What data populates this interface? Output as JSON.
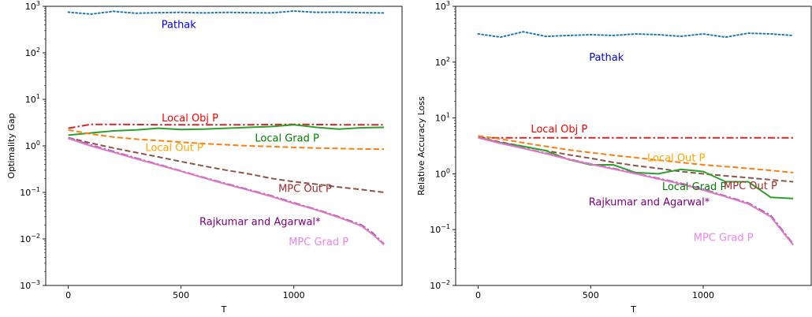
{
  "chart_data": [
    {
      "type": "line",
      "title": "",
      "xlabel": "T",
      "ylabel": "Optimality Gap",
      "yscale": "log",
      "xlim": [
        -100,
        1480
      ],
      "ylim": [
        0.001,
        1000
      ],
      "xticks": [
        "0",
        "500",
        "1000"
      ],
      "yticks": [
        "10^-3",
        "10^-2",
        "10^-1",
        "10^0",
        "10^1",
        "10^2",
        "10^3"
      ],
      "legend": "none",
      "grid": false,
      "series": [
        {
          "name": "Pathak",
          "color": "#1f77b4",
          "style": "dotted",
          "x": [
            0,
            100,
            200,
            300,
            400,
            500,
            600,
            700,
            800,
            900,
            1000,
            1100,
            1200,
            1300,
            1400
          ],
          "y": [
            750,
            680,
            780,
            710,
            730,
            740,
            720,
            740,
            730,
            720,
            790,
            740,
            750,
            730,
            720
          ]
        },
        {
          "name": "Local Obj P",
          "color": "#d62728",
          "style": "dashdot",
          "x": [
            0,
            100,
            200,
            400,
            600,
            800,
            1000,
            1200,
            1400
          ],
          "y": [
            2.4,
            2.9,
            2.9,
            2.85,
            2.85,
            2.85,
            2.9,
            2.85,
            2.85
          ]
        },
        {
          "name": "Local Grad P",
          "color": "#2ca02c",
          "style": "solid",
          "x": [
            0,
            100,
            200,
            300,
            400,
            500,
            600,
            700,
            800,
            900,
            1000,
            1100,
            1200,
            1300,
            1400
          ],
          "y": [
            1.7,
            1.9,
            2.1,
            2.2,
            2.4,
            2.25,
            2.3,
            2.4,
            2.5,
            2.6,
            2.85,
            2.5,
            2.3,
            2.45,
            2.5
          ]
        },
        {
          "name": "Local Out P",
          "color": "#ff7f0e",
          "style": "dashed",
          "x": [
            0,
            100,
            200,
            300,
            400,
            500,
            600,
            700,
            800,
            900,
            1000,
            1100,
            1200,
            1300,
            1400
          ],
          "y": [
            2.2,
            1.8,
            1.55,
            1.4,
            1.3,
            1.2,
            1.12,
            1.06,
            1.0,
            0.97,
            0.93,
            0.9,
            0.88,
            0.86,
            0.85
          ]
        },
        {
          "name": "MPC Out P",
          "color": "#8c564b",
          "style": "dashed",
          "x": [
            0,
            100,
            200,
            300,
            400,
            500,
            600,
            700,
            800,
            900,
            1000,
            1100,
            1200,
            1300,
            1400
          ],
          "y": [
            1.5,
            1.15,
            0.9,
            0.72,
            0.58,
            0.46,
            0.37,
            0.3,
            0.25,
            0.2,
            0.17,
            0.15,
            0.13,
            0.115,
            0.1
          ]
        },
        {
          "name": "Rajkumar and Agarwal*",
          "color": "#9467bd",
          "style": "dashdot",
          "x": [
            0,
            100,
            200,
            300,
            400,
            500,
            600,
            700,
            800,
            900,
            1000,
            1100,
            1200,
            1300,
            1350,
            1400
          ],
          "y": [
            1.5,
            1.05,
            0.76,
            0.55,
            0.4,
            0.29,
            0.21,
            0.155,
            0.115,
            0.085,
            0.06,
            0.043,
            0.03,
            0.02,
            0.0135,
            0.0078
          ]
        },
        {
          "name": "MPC Grad P",
          "color": "#e377c2",
          "style": "solid",
          "x": [
            0,
            100,
            200,
            300,
            400,
            500,
            600,
            700,
            800,
            900,
            1000,
            1100,
            1200,
            1300,
            1350,
            1400
          ],
          "y": [
            1.45,
            1.0,
            0.73,
            0.53,
            0.39,
            0.285,
            0.205,
            0.15,
            0.112,
            0.082,
            0.058,
            0.042,
            0.029,
            0.019,
            0.0125,
            0.0075
          ]
        }
      ],
      "annotations": [
        {
          "text": "Pathak",
          "color": "#0000ff",
          "x": 490,
          "y": 400
        },
        {
          "text": "Local Obj P",
          "color": "#ff0000",
          "x": 540,
          "y": 3.95
        },
        {
          "text": "Local Grad P",
          "color": "#008000",
          "x": 970,
          "y": 1.45
        },
        {
          "text": "Local Out P",
          "color": "#ffa500",
          "x": 470,
          "y": 0.9
        },
        {
          "text": "MPC Out P",
          "color": "#a52a2a",
          "x": 1050,
          "y": 0.12
        },
        {
          "text": "Rajkumar and Agarwal*",
          "color": "#800080",
          "x": 850,
          "y": 0.023
        },
        {
          "text": "MPC Grad P",
          "color": "#ee82ee",
          "x": 1110,
          "y": 0.0085
        }
      ]
    },
    {
      "type": "line",
      "title": "",
      "xlabel": "T",
      "ylabel": "Relative Accuracy Loss",
      "yscale": "log",
      "xlim": [
        -100,
        1480
      ],
      "ylim": [
        0.01,
        1000
      ],
      "xticks": [
        "0",
        "500",
        "1000"
      ],
      "yticks": [
        "10^-2",
        "10^-1",
        "10^0",
        "10^1",
        "10^2",
        "10^3"
      ],
      "legend": "none",
      "grid": false,
      "series": [
        {
          "name": "Pathak",
          "color": "#1f77b4",
          "style": "dotted",
          "x": [
            0,
            100,
            200,
            300,
            400,
            500,
            600,
            700,
            800,
            900,
            1000,
            1100,
            1200,
            1300,
            1400
          ],
          "y": [
            320,
            280,
            350,
            290,
            300,
            310,
            300,
            320,
            310,
            290,
            320,
            280,
            330,
            320,
            300
          ]
        },
        {
          "name": "Local Obj P",
          "color": "#d62728",
          "style": "dashdot",
          "x": [
            0,
            200,
            400,
            600,
            800,
            1000,
            1200,
            1400
          ],
          "y": [
            4.4,
            4.4,
            4.4,
            4.4,
            4.4,
            4.4,
            4.4,
            4.4
          ]
        },
        {
          "name": "Local Out P",
          "color": "#ff7f0e",
          "style": "dashed",
          "x": [
            0,
            100,
            200,
            300,
            400,
            500,
            600,
            700,
            800,
            900,
            1000,
            1100,
            1200,
            1300,
            1400
          ],
          "y": [
            4.8,
            4.2,
            3.6,
            3.1,
            2.7,
            2.4,
            2.15,
            1.95,
            1.75,
            1.6,
            1.45,
            1.35,
            1.25,
            1.15,
            1.05
          ]
        },
        {
          "name": "MPC Out P",
          "color": "#8c564b",
          "style": "dashed",
          "x": [
            0,
            100,
            200,
            300,
            400,
            500,
            600,
            700,
            800,
            900,
            1000,
            1100,
            1200,
            1300,
            1400
          ],
          "y": [
            4.5,
            3.7,
            3.1,
            2.6,
            2.2,
            1.9,
            1.6,
            1.4,
            1.25,
            1.1,
            1.0,
            0.92,
            0.85,
            0.78,
            0.72
          ]
        },
        {
          "name": "Local Grad P",
          "color": "#2ca02c",
          "style": "solid",
          "x": [
            0,
            100,
            200,
            300,
            400,
            500,
            600,
            700,
            800,
            900,
            1000,
            1100,
            1200,
            1300,
            1400
          ],
          "y": [
            4.5,
            3.6,
            3.1,
            2.6,
            1.8,
            1.45,
            1.45,
            1.05,
            1.0,
            1.2,
            1.1,
            0.72,
            0.72,
            0.38,
            0.36
          ]
        },
        {
          "name": "Rajkumar and Agarwal*",
          "color": "#9467bd",
          "style": "dashdot",
          "x": [
            0,
            100,
            200,
            300,
            400,
            500,
            600,
            700,
            800,
            900,
            1000,
            1100,
            1200,
            1300,
            1350,
            1400
          ],
          "y": [
            4.5,
            3.6,
            2.9,
            2.35,
            1.85,
            1.5,
            1.25,
            1.02,
            0.83,
            0.68,
            0.53,
            0.4,
            0.3,
            0.18,
            0.1,
            0.055
          ]
        },
        {
          "name": "MPC Grad P",
          "color": "#e377c2",
          "style": "solid",
          "x": [
            0,
            100,
            200,
            300,
            400,
            500,
            600,
            700,
            800,
            900,
            1000,
            1100,
            1200,
            1300,
            1350,
            1400
          ],
          "y": [
            4.4,
            3.5,
            2.85,
            2.3,
            1.82,
            1.48,
            1.22,
            1.0,
            0.81,
            0.66,
            0.51,
            0.39,
            0.29,
            0.17,
            0.095,
            0.053
          ]
        }
      ],
      "annotations": [
        {
          "text": "Pathak",
          "color": "#0000ff",
          "x": 570,
          "y": 120
        },
        {
          "text": "Local Obj P",
          "color": "#ff0000",
          "x": 360,
          "y": 6.3
        },
        {
          "text": "Local Out P",
          "color": "#ffa500",
          "x": 880,
          "y": 1.9
        },
        {
          "text": "Local Grad P",
          "color": "#008000",
          "x": 960,
          "y": 0.58
        },
        {
          "text": "MPC Out P",
          "color": "#a52a2a",
          "x": 1210,
          "y": 0.6
        },
        {
          "text": "Rajkumar and Agarwal*",
          "color": "#800080",
          "x": 760,
          "y": 0.31
        },
        {
          "text": "MPC Grad P",
          "color": "#ee82ee",
          "x": 1090,
          "y": 0.072
        }
      ]
    }
  ]
}
